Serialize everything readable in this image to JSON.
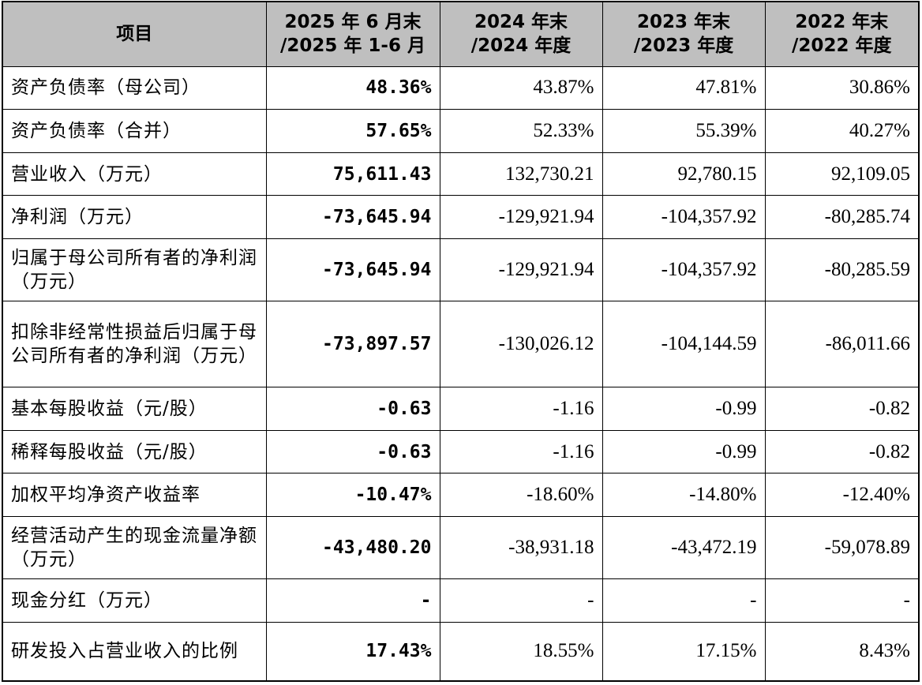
{
  "table": {
    "headers": [
      {
        "line1": "项目",
        "line2": ""
      },
      {
        "line1": "2025 年 6 月末",
        "line2": "/2025 年 1-6 月"
      },
      {
        "line1": "2024 年末",
        "line2": "/2024 年度"
      },
      {
        "line1": "2023 年末",
        "line2": "/2023 年度"
      },
      {
        "line1": "2022 年末",
        "line2": "/2022 年度"
      }
    ],
    "rows": [
      {
        "item": "资产负债率（母公司）",
        "v2025": "48.36%",
        "v2024": "43.87%",
        "v2023": "47.81%",
        "v2022": "30.86%"
      },
      {
        "item": "资产负债率（合并）",
        "v2025": "57.65%",
        "v2024": "52.33%",
        "v2023": "55.39%",
        "v2022": "40.27%"
      },
      {
        "item": "营业收入（万元）",
        "v2025": "75,611.43",
        "v2024": "132,730.21",
        "v2023": "92,780.15",
        "v2022": "92,109.05"
      },
      {
        "item": "净利润（万元）",
        "v2025": "-73,645.94",
        "v2024": "-129,921.94",
        "v2023": "-104,357.92",
        "v2022": "-80,285.74"
      },
      {
        "item": "归属于母公司所有者的净利润（万元）",
        "v2025": "-73,645.94",
        "v2024": "-129,921.94",
        "v2023": "-104,357.92",
        "v2022": "-80,285.59"
      },
      {
        "item": "扣除非经常性损益后归属于母公司所有者的净利润（万元）",
        "v2025": "-73,897.57",
        "v2024": "-130,026.12",
        "v2023": "-104,144.59",
        "v2022": "-86,011.66"
      },
      {
        "item": "基本每股收益（元/股）",
        "v2025": "-0.63",
        "v2024": "-1.16",
        "v2023": "-0.99",
        "v2022": "-0.82"
      },
      {
        "item": "稀释每股收益（元/股）",
        "v2025": "-0.63",
        "v2024": "-1.16",
        "v2023": "-0.99",
        "v2022": "-0.82"
      },
      {
        "item": "加权平均净资产收益率",
        "v2025": "-10.47%",
        "v2024": "-18.60%",
        "v2023": "-14.80%",
        "v2022": "-12.40%"
      },
      {
        "item": "经营活动产生的现金流量净额（万元）",
        "v2025": "-43,480.20",
        "v2024": "-38,931.18",
        "v2023": "-43,472.19",
        "v2022": "-59,078.89"
      },
      {
        "item": "现金分红（万元）",
        "v2025": "-",
        "v2024": "-",
        "v2023": "-",
        "v2022": "-"
      },
      {
        "item": "研发投入占营业收入的比例",
        "v2025": "17.43%",
        "v2024": "18.55%",
        "v2023": "17.15%",
        "v2022": "8.43%"
      }
    ]
  }
}
